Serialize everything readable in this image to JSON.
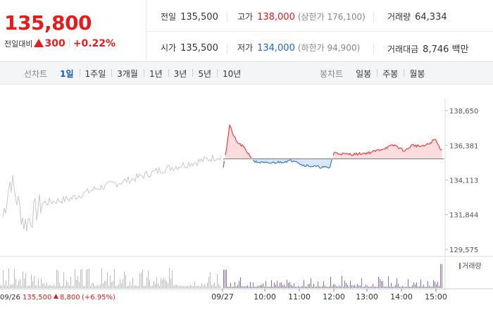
{
  "quote": {
    "current_price": "135,800",
    "change_label": "전일대비",
    "change_amount": "300",
    "change_percent": "+0.22%",
    "prev_close_label": "전일",
    "prev_close": "135,500",
    "open_label": "시가",
    "open": "135,500",
    "high_label": "고가",
    "high": "138,000",
    "upper_limit": "(상한가 176,100)",
    "low_label": "저가",
    "low": "134,000",
    "lower_limit": "(하한가 94,900)",
    "volume_label": "거래량",
    "volume": "64,334",
    "amount_label": "거래대금",
    "amount": "8,746 백만"
  },
  "toolbar": {
    "line_chart_label": "선차트",
    "periods": [
      "1일",
      "1주일",
      "3개월",
      "1년",
      "3년",
      "5년",
      "10년"
    ],
    "active_period": 0,
    "candle_chart_label": "봉차트",
    "candle_periods": [
      "일봉",
      "주봉",
      "월봉"
    ]
  },
  "chart_data": {
    "type": "line",
    "y_ticks": [
      "138,650",
      "136,381",
      "134,113",
      "131,844",
      "129,575"
    ],
    "ylim": [
      129575,
      138650
    ],
    "baseline": 135500,
    "x_ticks": [
      "09/27",
      "10:00",
      "11:00",
      "12:00",
      "13:00",
      "14:00",
      "15:00"
    ],
    "volume_legend": "거래량",
    "prev_day_footer": {
      "date": "09/26",
      "price": "135,500",
      "change": "8,800",
      "percent": "(+6.95%)"
    },
    "colors": {
      "up": "#e8404a",
      "down": "#3a7bd5",
      "prev": "#c8c8c8",
      "volume_today": "#8a6fb0",
      "volume_prev": "#bbbbbb"
    }
  }
}
